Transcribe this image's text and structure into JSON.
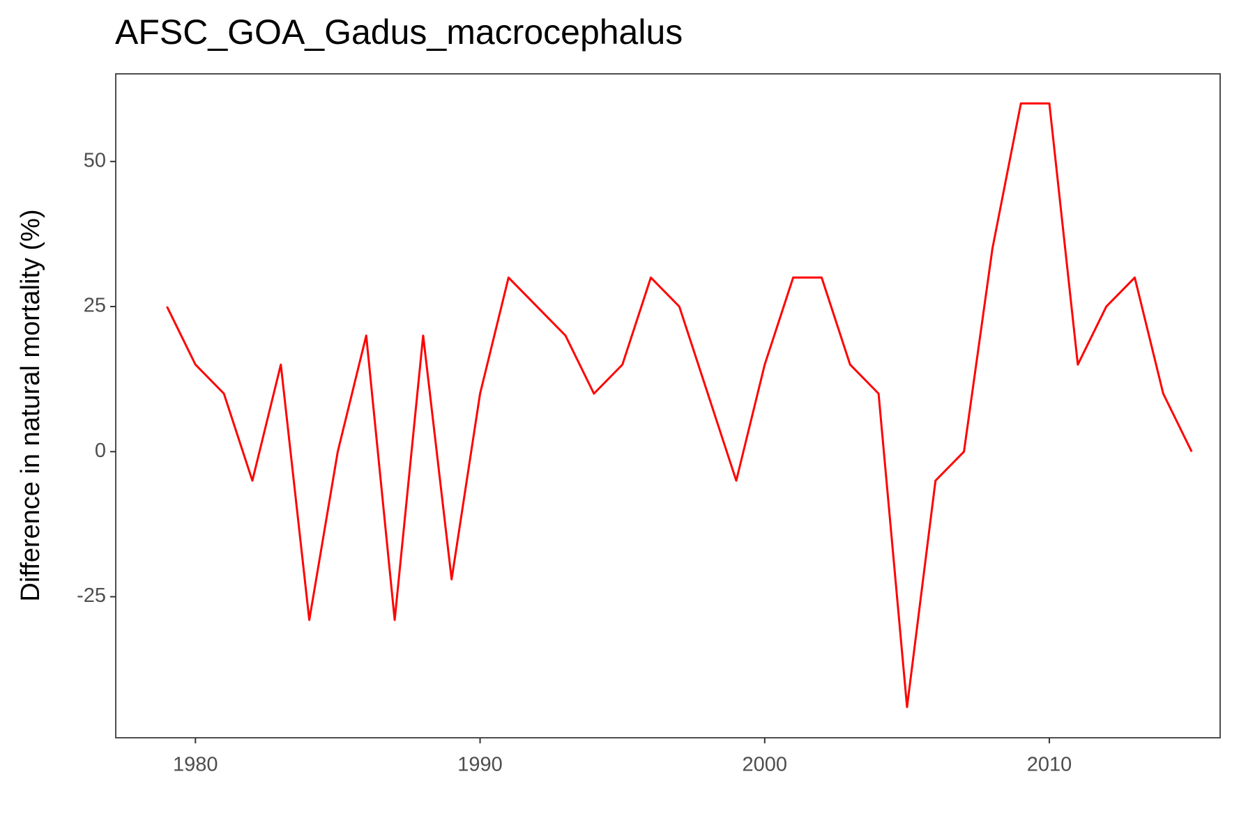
{
  "chart_data": {
    "type": "line",
    "title": "AFSC_GOA_Gadus_macrocephalus",
    "y_label": "Difference in natural mortality (%)",
    "x": [
      1979,
      1980,
      1981,
      1982,
      1983,
      1984,
      1985,
      1986,
      1987,
      1988,
      1989,
      1990,
      1991,
      1992,
      1993,
      1994,
      1995,
      1996,
      1997,
      1998,
      1999,
      2000,
      2001,
      2002,
      2003,
      2004,
      2005,
      2006,
      2007,
      2008,
      2009,
      2010,
      2011,
      2012,
      2013,
      2014,
      2015
    ],
    "series": [
      {
        "color": "#ff0000",
        "values": [
          25,
          15,
          10,
          -5,
          15,
          -29,
          0,
          20,
          -29,
          20,
          -22,
          10,
          30,
          25,
          20,
          10,
          15,
          30,
          25,
          10,
          -5,
          15,
          30,
          30,
          15,
          10,
          -44,
          -5,
          0,
          35,
          60,
          60,
          15,
          25,
          30,
          10,
          0
        ]
      }
    ],
    "xlim": [
      1977.2,
      2016.0
    ],
    "xticks": [
      1980,
      1990,
      2000,
      2010
    ],
    "ylim": [
      -49.3,
      65.1
    ],
    "yticks": [
      {
        "value": -25,
        "label": "-25"
      },
      0,
      25,
      50
    ],
    "grid": false
  }
}
